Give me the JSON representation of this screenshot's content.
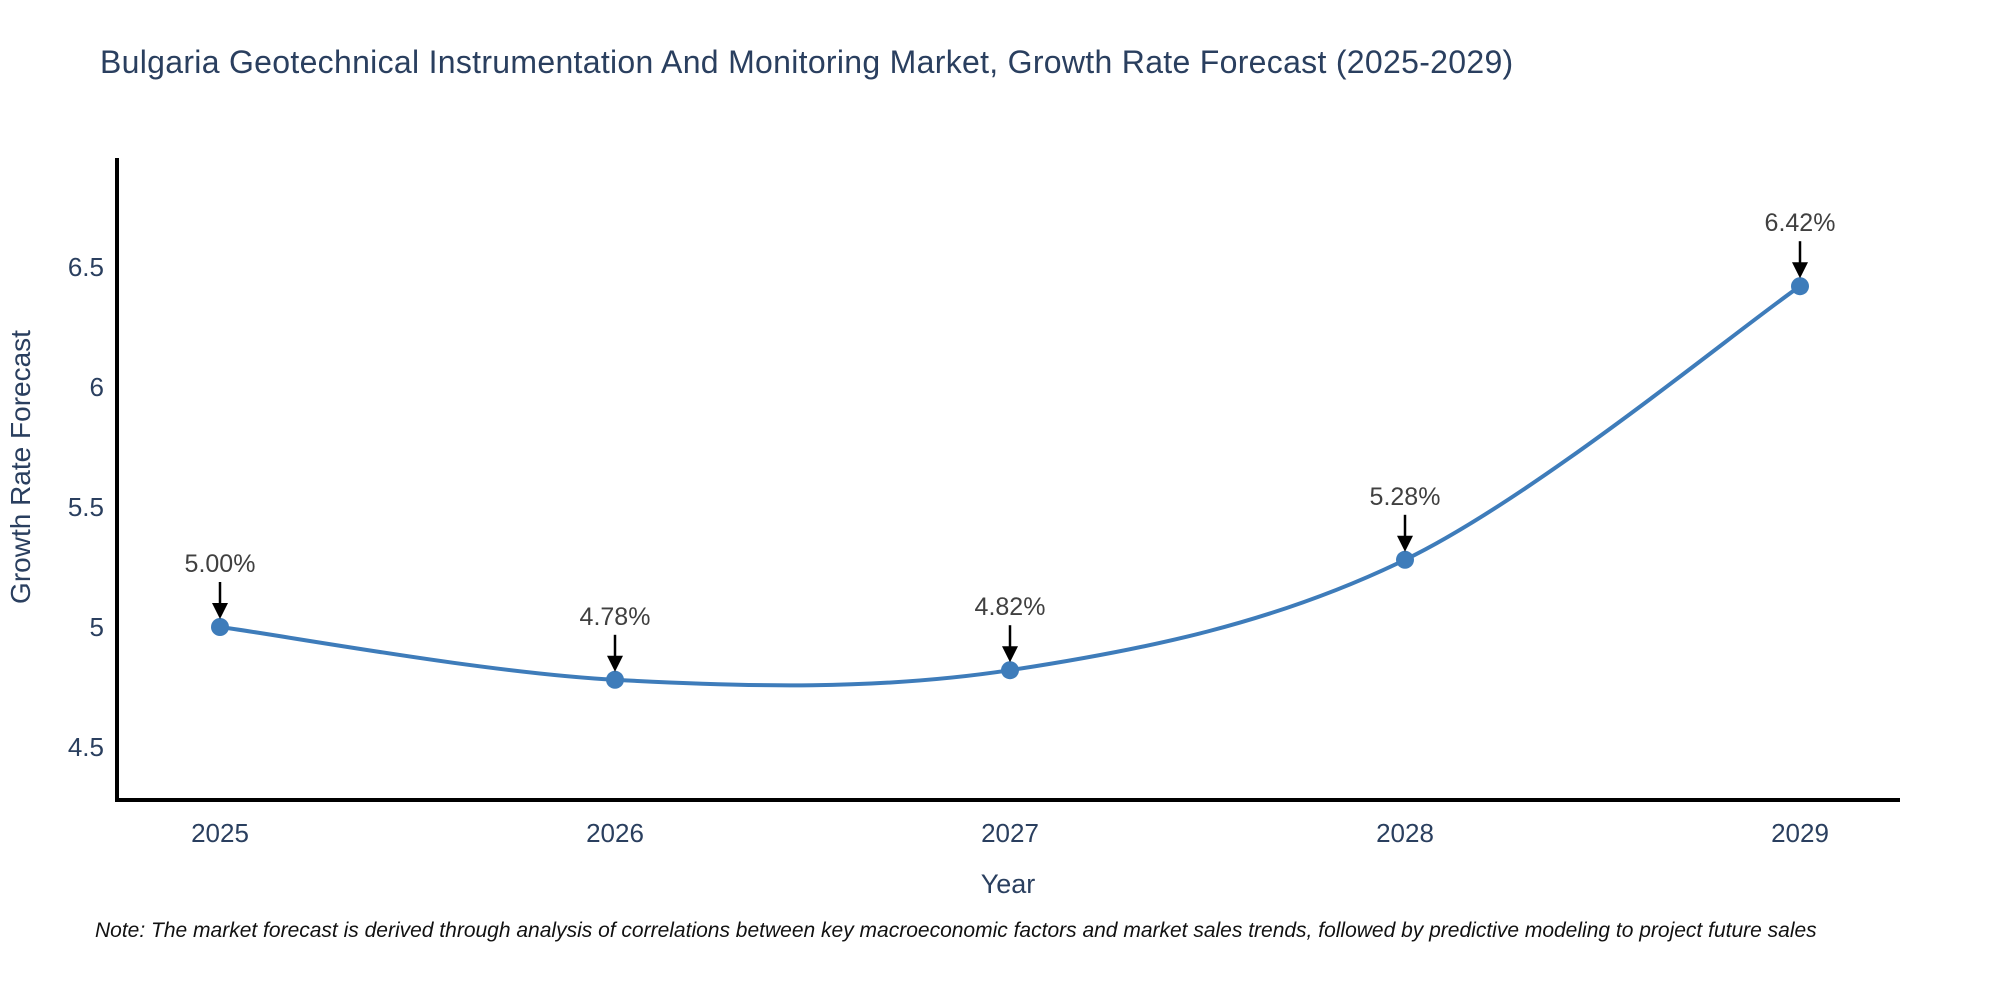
{
  "page": {
    "background": "#ffffff"
  },
  "chart_data": {
    "type": "line",
    "title": "Bulgaria Geotechnical Instrumentation And Monitoring Market, Growth Rate Forecast (2025-2029)",
    "xlabel": "Year",
    "ylabel": "Growth Rate Forecast",
    "categories": [
      "2025",
      "2026",
      "2027",
      "2028",
      "2029"
    ],
    "series": [
      {
        "name": "Growth Rate Forecast",
        "values": [
          5.0,
          4.78,
          4.82,
          5.28,
          6.42
        ],
        "point_labels": [
          "5.00%",
          "4.78%",
          "4.82%",
          "5.28%",
          "6.42%"
        ]
      }
    ],
    "y_ticks": [
      4.5,
      5,
      5.5,
      6,
      6.5
    ],
    "y_tick_labels": [
      "4.5",
      "5",
      "5.5",
      "6",
      "6.5"
    ],
    "ylim": [
      4.28,
      6.95
    ],
    "grid": false,
    "legend": false,
    "curve": "spline",
    "colors": {
      "line": "#3e7cba",
      "marker": "#3e7cba",
      "axis_line": "#000000",
      "tick_label": "#2a3f5f",
      "axis_title": "#2a3f5f",
      "title": "#2a3f5f",
      "annotation_text": "#404040",
      "annotation_arrow": "#000000"
    }
  },
  "note": {
    "text": "Note: The market forecast is derived through analysis of correlations between key macroeconomic factors and market sales trends, followed by predictive modeling to project future sales"
  }
}
